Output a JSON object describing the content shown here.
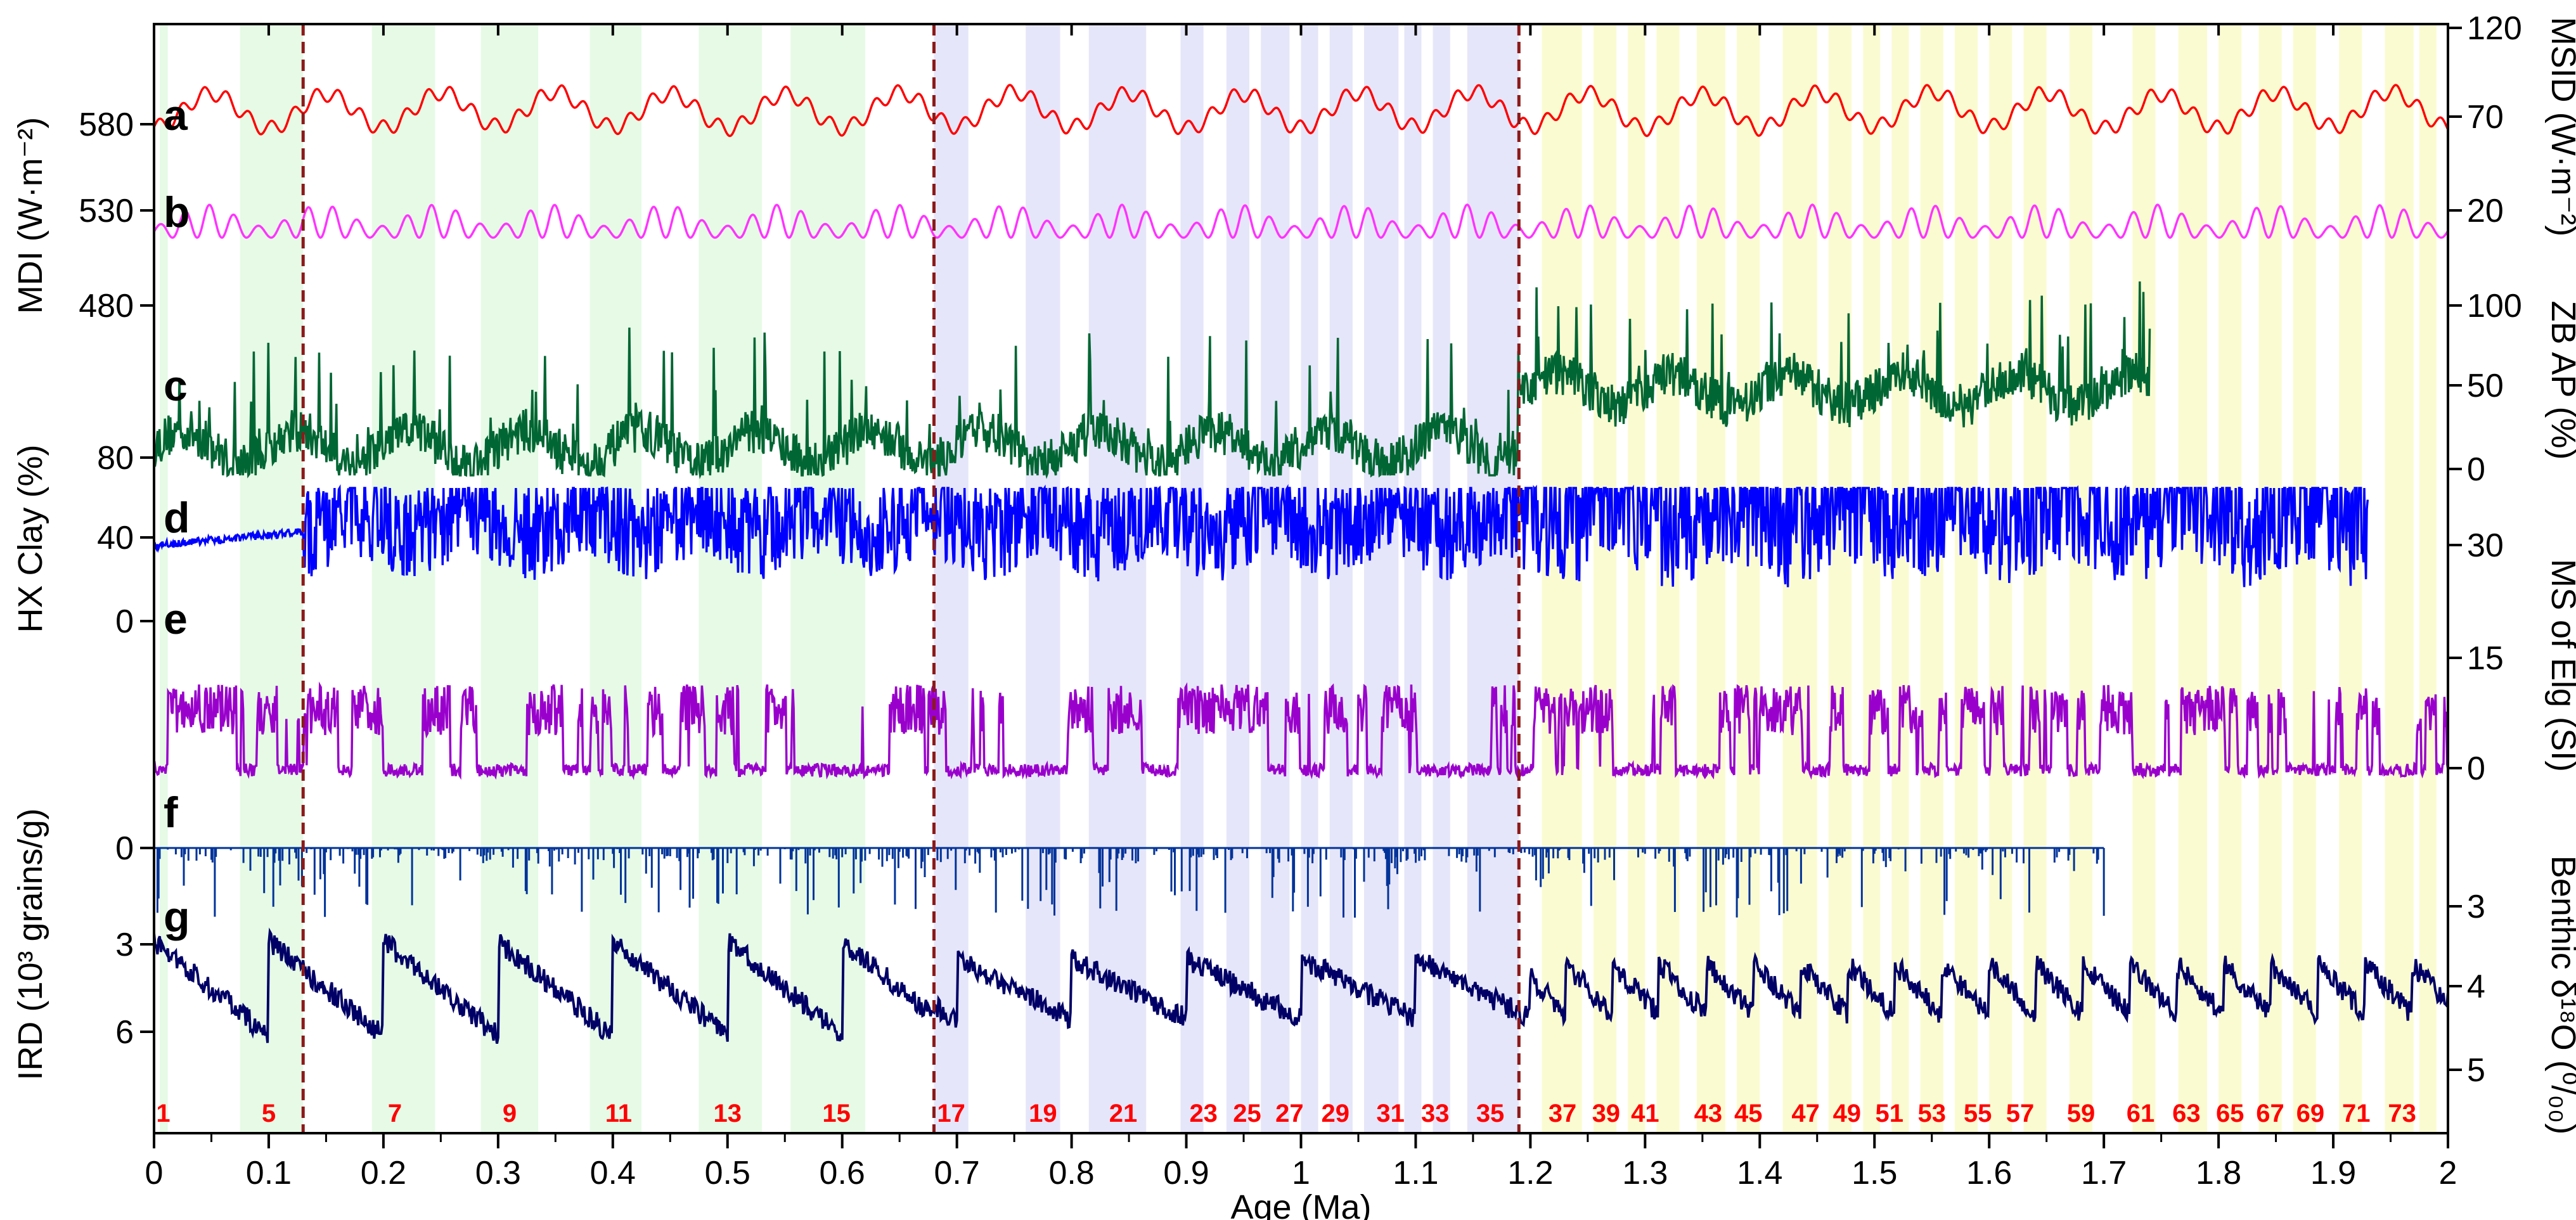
{
  "chart_data": {
    "type": "line",
    "xlabel": "Age (Ma)",
    "xlim": [
      0,
      2
    ],
    "x_ticks": [
      "0",
      "0.1",
      "0.2",
      "0.3",
      "0.4",
      "0.5",
      "0.6",
      "0.7",
      "0.8",
      "0.9",
      "1",
      "1.1",
      "1.2",
      "1.3",
      "1.4",
      "1.5",
      "1.6",
      "1.7",
      "1.8",
      "1.9",
      "2"
    ],
    "left_axes": [
      {
        "label": "MDI (W·m⁻²)",
        "ticks": [
          "580",
          "530",
          "480"
        ]
      },
      {
        "label": "HX Clay (%)",
        "ticks": [
          "80",
          "40",
          "0"
        ]
      },
      {
        "label": "IRD (10³ grains/g)",
        "ticks": [
          "0",
          "3",
          "6"
        ]
      }
    ],
    "right_axes": [
      {
        "label": "MSID (W·m⁻²)",
        "ticks": [
          "120",
          "70",
          "20"
        ]
      },
      {
        "label": "ZB AP (%)",
        "ticks": [
          "100",
          "50",
          "0"
        ]
      },
      {
        "label": "MS of Elg (SI)",
        "ticks": [
          "30",
          "15",
          "0"
        ]
      },
      {
        "label": "Benthic δ¹⁸O (⁰/₀₀)",
        "ticks": [
          "3",
          "4",
          "5"
        ]
      }
    ],
    "series": [
      {
        "key": "a",
        "color": "#ff0000"
      },
      {
        "key": "b",
        "color": "#ff33ff"
      },
      {
        "key": "c",
        "color": "#006633"
      },
      {
        "key": "d",
        "color": "#0000ff"
      },
      {
        "key": "e",
        "color": "#9900cc"
      },
      {
        "key": "f",
        "color": "#003399"
      },
      {
        "key": "g",
        "color": "#000066"
      }
    ],
    "transitions_ma": [
      0.13,
      0.68,
      1.19
    ],
    "shaded_intervals": {
      "green": [
        [
          0.005,
          0.012
        ],
        [
          0.075,
          0.13
        ],
        [
          0.19,
          0.245
        ],
        [
          0.285,
          0.335
        ],
        [
          0.38,
          0.425
        ],
        [
          0.475,
          0.53
        ],
        [
          0.555,
          0.62
        ]
      ],
      "blue": [
        [
          0.68,
          0.71
        ],
        [
          0.76,
          0.79
        ],
        [
          0.815,
          0.865
        ],
        [
          0.895,
          0.915
        ],
        [
          0.935,
          0.955
        ],
        [
          0.965,
          0.99
        ],
        [
          1.0,
          1.015
        ],
        [
          1.025,
          1.045
        ],
        [
          1.055,
          1.085
        ],
        [
          1.09,
          1.105
        ],
        [
          1.115,
          1.13
        ],
        [
          1.145,
          1.19
        ]
      ],
      "yellow": [
        [
          1.21,
          1.245
        ],
        [
          1.255,
          1.275
        ],
        [
          1.285,
          1.3
        ],
        [
          1.31,
          1.33
        ],
        [
          1.345,
          1.37
        ],
        [
          1.38,
          1.4
        ],
        [
          1.42,
          1.45
        ],
        [
          1.46,
          1.48
        ],
        [
          1.49,
          1.505
        ],
        [
          1.515,
          1.53
        ],
        [
          1.54,
          1.56
        ],
        [
          1.57,
          1.59
        ],
        [
          1.6,
          1.62
        ],
        [
          1.63,
          1.65
        ],
        [
          1.67,
          1.69
        ],
        [
          1.725,
          1.745
        ],
        [
          1.765,
          1.79
        ],
        [
          1.8,
          1.82
        ],
        [
          1.835,
          1.855
        ],
        [
          1.865,
          1.885
        ],
        [
          1.905,
          1.925
        ],
        [
          1.945,
          1.97
        ],
        [
          1.975,
          1.99
        ]
      ]
    },
    "mis_labels": [
      {
        "text": "1",
        "x": 0.008
      },
      {
        "text": "5",
        "x": 0.1
      },
      {
        "text": "7",
        "x": 0.21
      },
      {
        "text": "9",
        "x": 0.31
      },
      {
        "text": "11",
        "x": 0.405
      },
      {
        "text": "13",
        "x": 0.5
      },
      {
        "text": "15",
        "x": 0.595
      },
      {
        "text": "17",
        "x": 0.695
      },
      {
        "text": "19",
        "x": 0.775
      },
      {
        "text": "21",
        "x": 0.845
      },
      {
        "text": "23",
        "x": 0.915
      },
      {
        "text": "25",
        "x": 0.953
      },
      {
        "text": "27",
        "x": 0.99
      },
      {
        "text": "29",
        "x": 1.03
      },
      {
        "text": "31",
        "x": 1.078
      },
      {
        "text": "33",
        "x": 1.117
      },
      {
        "text": "35",
        "x": 1.165
      },
      {
        "text": "37",
        "x": 1.228
      },
      {
        "text": "39",
        "x": 1.266
      },
      {
        "text": "41",
        "x": 1.3
      },
      {
        "text": "43",
        "x": 1.355
      },
      {
        "text": "45",
        "x": 1.39
      },
      {
        "text": "47",
        "x": 1.44
      },
      {
        "text": "49",
        "x": 1.476
      },
      {
        "text": "51",
        "x": 1.513
      },
      {
        "text": "53",
        "x": 1.55
      },
      {
        "text": "55",
        "x": 1.59
      },
      {
        "text": "57",
        "x": 1.627
      },
      {
        "text": "59",
        "x": 1.68
      },
      {
        "text": "61",
        "x": 1.732
      },
      {
        "text": "63",
        "x": 1.772
      },
      {
        "text": "65",
        "x": 1.81
      },
      {
        "text": "67",
        "x": 1.845
      },
      {
        "text": "69",
        "x": 1.88
      },
      {
        "text": "71",
        "x": 1.92
      },
      {
        "text": "73",
        "x": 1.96
      }
    ],
    "panel_letters": [
      "a",
      "b",
      "c",
      "d",
      "e",
      "f",
      "g"
    ]
  }
}
